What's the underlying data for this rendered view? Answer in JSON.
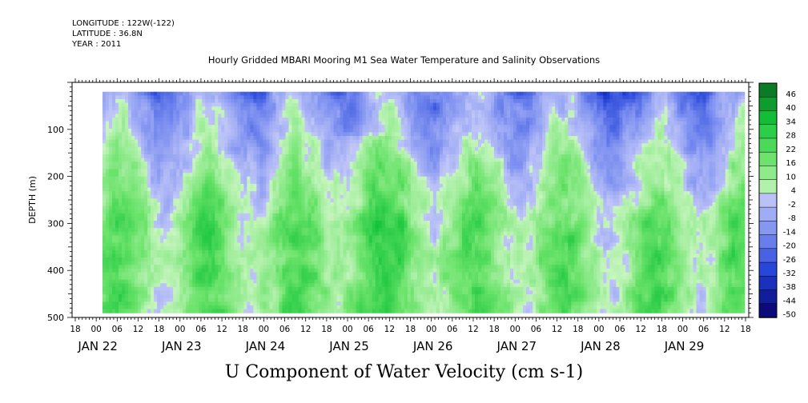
{
  "header": {
    "longitude": "LONGITUDE : 122W(-122)",
    "latitude": "LATITUDE : 36.8N",
    "year": "YEAR : 2011"
  },
  "chart_data": {
    "type": "heatmap",
    "title": "Hourly Gridded MBARI Mooring M1 Sea Water Temperature and Salinity Observations",
    "xlabel": "U Component of Water Velocity (cm s-1)",
    "ylabel": "DEPTH (m)",
    "x_range_hours": [
      "JAN 21 18:00",
      "JAN 29 18:00"
    ],
    "x_hour_ticks": [
      "18",
      "00",
      "06",
      "12",
      "18",
      "00",
      "06",
      "12",
      "18",
      "00",
      "06",
      "12",
      "18",
      "00",
      "06",
      "12",
      "18",
      "00",
      "06",
      "12",
      "18",
      "00",
      "06",
      "12",
      "18",
      "00",
      "06",
      "12",
      "18",
      "00",
      "06",
      "12",
      "18"
    ],
    "x_day_labels": [
      "JAN 22",
      "JAN 23",
      "JAN 24",
      "JAN 25",
      "JAN 26",
      "JAN 27",
      "JAN 28",
      "JAN 29"
    ],
    "y_ticks": [
      100,
      200,
      300,
      400,
      500
    ],
    "ylim": [
      500,
      0
    ],
    "data_depth_range": [
      20,
      490
    ],
    "colorbar_levels": [
      46,
      40,
      34,
      28,
      22,
      16,
      10,
      4,
      -2,
      -8,
      -14,
      -20,
      -26,
      -32,
      -38,
      -44,
      -50
    ],
    "colorscale": {
      "min": -50,
      "max": 49,
      "negative": [
        "#0a0a7a",
        "#2040d8",
        "#7b8ef0",
        "#c2c8f8"
      ],
      "positive": [
        "#c8f5c0",
        "#6be36b",
        "#13c43a",
        "#0a6a20"
      ]
    },
    "pattern_summary": "Negative (blue) velocities dominate the upper 0-200 m, positive (green) velocities dominate 200-490 m, with strongest positive flow near JAN 25 and strongest negative flow near JAN 28 at the surface."
  }
}
